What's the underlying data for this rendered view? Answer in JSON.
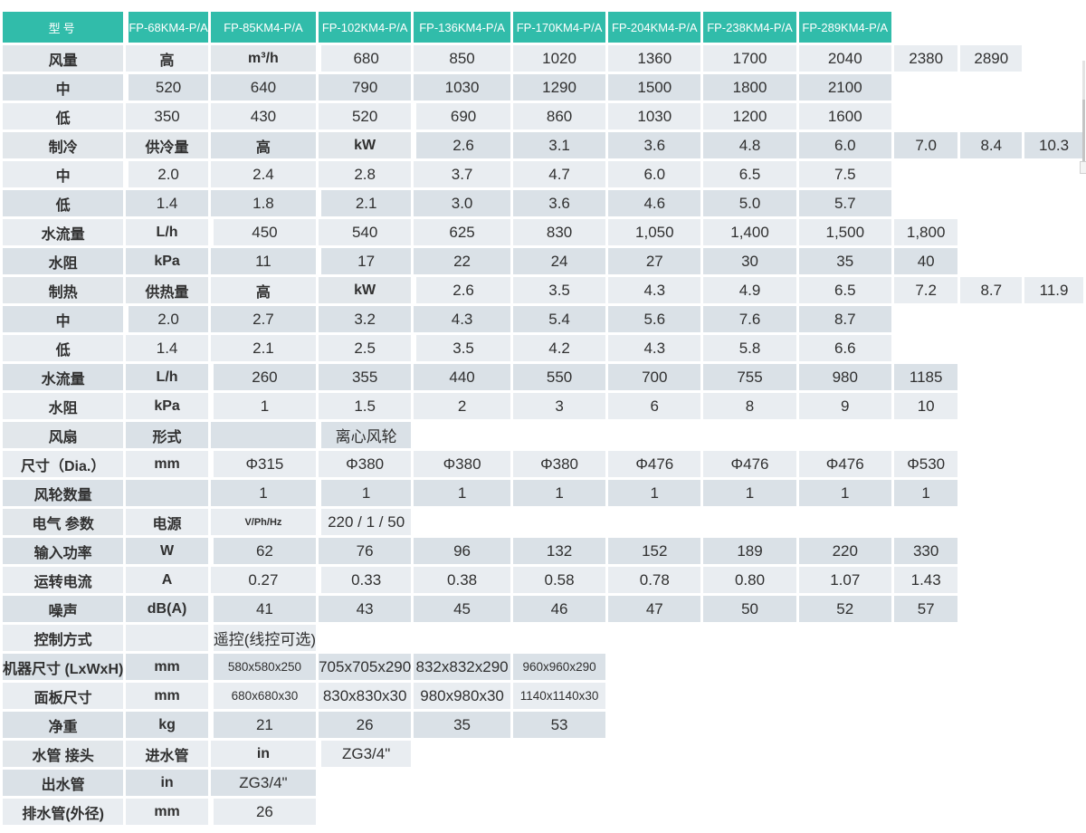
{
  "colors": {
    "header_bg": "#31bcaa",
    "header_text": "#ffffff",
    "row_light": "#e9edf1",
    "row_dark": "#dae1e7",
    "merged_label_bg": "#e2e7eb",
    "text": "#303030"
  },
  "table": {
    "rows": [
      [
        {
          "t": "型号",
          "c": "head corner",
          "cs": 4
        },
        {
          "t": "FP-68KM4-P/A",
          "c": "head"
        },
        {
          "t": "FP-85KM4-P/A",
          "c": "head"
        },
        {
          "t": "FP-102KM4-P/A",
          "c": "head"
        },
        {
          "t": "FP-136KM4-P/A",
          "c": "head"
        },
        {
          "t": "FP-170KM4-P/A",
          "c": "head"
        },
        {
          "t": "FP-204KM4-P/A",
          "c": "head"
        },
        {
          "t": "FP-238KM4-P/A",
          "c": "head"
        },
        {
          "t": "FP-289KM4-P/A",
          "c": "head"
        }
      ],
      [
        {
          "t": "风量",
          "c": "mer",
          "cs": 2,
          "rs": 3
        },
        {
          "t": "高",
          "c": "lab"
        },
        {
          "t": "m³/h",
          "c": "mer unit",
          "rs": 3
        },
        "680",
        "850",
        "1020",
        "1360",
        "1700",
        "2040",
        "2380",
        "2890"
      ],
      [
        {
          "t": "中",
          "c": "lab"
        },
        "520",
        "640",
        "790",
        "1030",
        "1290",
        "1500",
        "1800",
        "2100"
      ],
      [
        {
          "t": "低",
          "c": "lab"
        },
        "350",
        "430",
        "520",
        "690",
        "860",
        "1030",
        "1200",
        "1600"
      ],
      [
        {
          "t": "制冷",
          "c": "mer",
          "rs": 5
        },
        {
          "t": "供冷量",
          "c": "mer",
          "rs": 3
        },
        {
          "t": "高",
          "c": "lab"
        },
        {
          "t": "kW",
          "c": "mer unit",
          "rs": 3
        },
        "2.6",
        "3.1",
        "3.6",
        "4.8",
        "6.0",
        "7.0",
        "8.4",
        "10.3"
      ],
      [
        {
          "t": "中",
          "c": "lab"
        },
        "2.0",
        "2.4",
        "2.8",
        "3.7",
        "4.7",
        "6.0",
        "6.5",
        "7.5"
      ],
      [
        {
          "t": "低",
          "c": "lab"
        },
        "1.4",
        "1.8",
        "2.1",
        "3.0",
        "3.6",
        "4.6",
        "5.0",
        "5.7"
      ],
      [
        {
          "t": "水流量",
          "c": "lab",
          "cs": 2
        },
        {
          "t": "L/h",
          "c": "unit"
        },
        "450",
        "540",
        "625",
        "830",
        "1,050",
        "1,400",
        "1,500",
        "1,800"
      ],
      [
        {
          "t": "水阻",
          "c": "lab",
          "cs": 2
        },
        {
          "t": "kPa",
          "c": "unit"
        },
        "11",
        "17",
        "22",
        "24",
        "27",
        "30",
        "35",
        "40"
      ],
      [
        {
          "t": "制热",
          "c": "mer",
          "rs": 3
        },
        {
          "t": "供热量",
          "c": "mer",
          "rs": 3
        },
        {
          "t": "高",
          "c": "lab"
        },
        {
          "t": "kW",
          "c": "mer unit",
          "rs": 3
        },
        "2.6",
        "3.5",
        "4.3",
        "4.9",
        "6.5",
        "7.2",
        "8.7",
        "11.9"
      ],
      [
        {
          "t": "中",
          "c": "lab"
        },
        "2.0",
        "2.7",
        "3.2",
        "4.3",
        "5.4",
        "5.6",
        "7.6",
        "8.7"
      ],
      [
        {
          "t": "低",
          "c": "lab"
        },
        "1.4",
        "2.1",
        "2.5",
        "3.5",
        "4.2",
        "4.3",
        "5.8",
        "6.6"
      ],
      [
        {
          "t": "水流量",
          "c": "lab",
          "cs": 3
        },
        {
          "t": "L/h",
          "c": "unit"
        },
        "260",
        "355",
        "440",
        "550",
        "700",
        "755",
        "980",
        "1185"
      ],
      [
        {
          "t": "水阻",
          "c": "lab",
          "cs": 3
        },
        {
          "t": "kPa",
          "c": "unit"
        },
        "1",
        "1.5",
        "2",
        "3",
        "6",
        "8",
        "9",
        "10"
      ],
      [
        {
          "t": "风扇",
          "c": "mer",
          "rs": 3
        },
        {
          "t": "形式",
          "c": "lab",
          "cs": 2
        },
        {
          "t": "",
          "c": "unit"
        },
        {
          "t": "离心风轮",
          "c": "val",
          "cs": 8
        }
      ],
      [
        {
          "t": "尺寸（Dia.）",
          "c": "lab",
          "cs": 2
        },
        {
          "t": "mm",
          "c": "unit"
        },
        "Φ315",
        "Φ380",
        "Φ380",
        "Φ380",
        "Φ476",
        "Φ476",
        "Φ476",
        "Φ530"
      ],
      [
        {
          "t": "风轮数量",
          "c": "lab",
          "cs": 2
        },
        {
          "t": "",
          "c": "unit"
        },
        "1",
        "1",
        "1",
        "1",
        "1",
        "1",
        "1",
        "1"
      ],
      [
        {
          "t": "电气\n参数",
          "c": "mer",
          "rs": 3
        },
        {
          "t": "电源",
          "c": "lab",
          "cs": 2
        },
        {
          "t": "V/Ph/Hz",
          "c": "unit vph"
        },
        {
          "t": "220 / 1 / 50",
          "c": "val",
          "cs": 8
        }
      ],
      [
        {
          "t": "输入功率",
          "c": "lab",
          "cs": 2
        },
        {
          "t": "W",
          "c": "unit"
        },
        "62",
        "76",
        "96",
        "132",
        "152",
        "189",
        "220",
        "330"
      ],
      [
        {
          "t": "运转电流",
          "c": "lab",
          "cs": 2
        },
        {
          "t": "A",
          "c": "unit"
        },
        "0.27",
        "0.33",
        "0.38",
        "0.58",
        "0.78",
        "0.80",
        "1.07",
        "1.43"
      ],
      [
        {
          "t": "噪声",
          "c": "lab",
          "cs": 3
        },
        {
          "t": "dB(A)",
          "c": "unit"
        },
        "41",
        "43",
        "45",
        "46",
        "47",
        "50",
        "52",
        "57"
      ],
      [
        {
          "t": "控制方式",
          "c": "lab",
          "cs": 3
        },
        {
          "t": "",
          "c": "unit"
        },
        {
          "t": "遥控(线控可选)",
          "c": "val",
          "cs": 8
        }
      ],
      [
        {
          "t": "机器尺寸 (LxWxH)",
          "c": "lab",
          "cs": 3
        },
        {
          "t": "mm",
          "c": "unit"
        },
        {
          "t": "580x580x250",
          "c": "val sm"
        },
        {
          "t": "705x705x290",
          "c": "val",
          "cs": 3
        },
        {
          "t": "832x832x290",
          "c": "val",
          "cs": 3
        },
        {
          "t": "960x960x290",
          "c": "val sm"
        }
      ],
      [
        {
          "t": "面板尺寸",
          "c": "lab",
          "cs": 3
        },
        {
          "t": "mm",
          "c": "unit"
        },
        {
          "t": "680x680x30",
          "c": "val sm"
        },
        {
          "t": "830x830x30",
          "c": "val",
          "cs": 3
        },
        {
          "t": "980x980x30",
          "c": "val",
          "cs": 3
        },
        {
          "t": "1140x1140x30",
          "c": "val sm"
        }
      ],
      [
        {
          "t": "净重",
          "c": "lab",
          "cs": 3
        },
        {
          "t": "kg",
          "c": "unit"
        },
        {
          "t": "21",
          "c": "val"
        },
        {
          "t": "26",
          "c": "val",
          "cs": 3
        },
        {
          "t": "35",
          "c": "val",
          "cs": 3
        },
        {
          "t": "53",
          "c": "val"
        }
      ],
      [
        {
          "t": "水管\n接头",
          "c": "mer",
          "rs": 2
        },
        {
          "t": "进水管",
          "c": "lab",
          "cs": 2
        },
        {
          "t": "in",
          "c": "unit"
        },
        {
          "t": "ZG3/4\"",
          "c": "val",
          "cs": 8
        }
      ],
      [
        {
          "t": "出水管",
          "c": "lab",
          "cs": 2
        },
        {
          "t": "in",
          "c": "unit"
        },
        {
          "t": "ZG3/4\"",
          "c": "val",
          "cs": 8
        }
      ],
      [
        {
          "t": "排水管(外径)",
          "c": "lab",
          "cs": 3
        },
        {
          "t": "mm",
          "c": "unit"
        },
        {
          "t": "26",
          "c": "val",
          "cs": 8
        }
      ]
    ]
  }
}
